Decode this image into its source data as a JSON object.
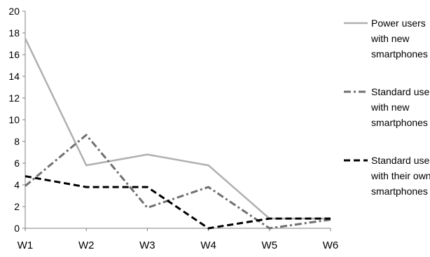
{
  "chart_data": {
    "type": "line",
    "categories": [
      "W1",
      "W2",
      "W3",
      "W4",
      "W5",
      "W6"
    ],
    "ylim": [
      0,
      20
    ],
    "yticks": [
      0,
      2,
      4,
      6,
      8,
      10,
      12,
      14,
      16,
      18,
      20
    ],
    "grid": false,
    "legend_position": "right",
    "series": [
      {
        "name": "Power users with new smartphones",
        "legend_lines": [
          "Power users",
          "with new",
          "smartphones"
        ],
        "values": [
          17.5,
          5.8,
          6.8,
          5.8,
          0.9,
          0.9
        ],
        "color": "#b0b0b0",
        "style": "solid"
      },
      {
        "name": "Standard users with new smartphones",
        "legend_lines": [
          "Standard users",
          "with new",
          "smartphones"
        ],
        "values": [
          3.9,
          8.6,
          1.9,
          3.8,
          0.0,
          0.8
        ],
        "color": "#707070",
        "style": "dashdot"
      },
      {
        "name": "Standard users with their own smartphones",
        "legend_lines": [
          "Standard users",
          "with their own",
          "smartphones"
        ],
        "values": [
          4.8,
          3.8,
          3.8,
          0.0,
          0.9,
          0.9
        ],
        "color": "#000000",
        "style": "dashed"
      }
    ]
  }
}
